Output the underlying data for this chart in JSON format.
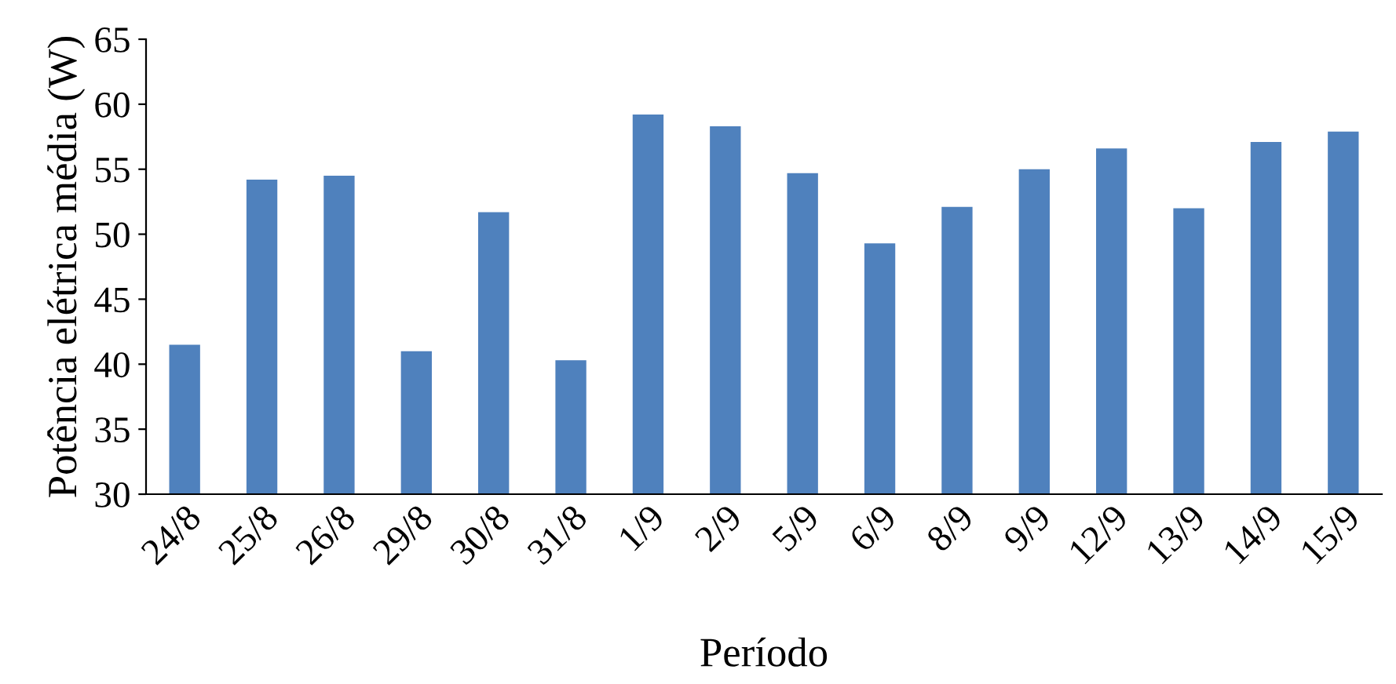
{
  "chart_data": {
    "type": "bar",
    "xlabel": "Período",
    "ylabel": "Potência elétrica média (W)",
    "categories": [
      "24/8",
      "25/8",
      "26/8",
      "29/8",
      "30/8",
      "31/8",
      "1/9",
      "2/9",
      "5/9",
      "6/9",
      "8/9",
      "9/9",
      "12/9",
      "13/9",
      "14/9",
      "15/9"
    ],
    "values": [
      41.5,
      54.2,
      54.5,
      41.0,
      51.7,
      40.3,
      59.2,
      58.3,
      54.7,
      49.3,
      52.1,
      55.0,
      56.6,
      52.0,
      57.1,
      57.9
    ],
    "color": "#4f81bd",
    "ylim": [
      30,
      65
    ],
    "yticks": [
      30,
      35,
      40,
      45,
      50,
      55,
      60,
      65
    ],
    "grid": false,
    "legend": false
  }
}
